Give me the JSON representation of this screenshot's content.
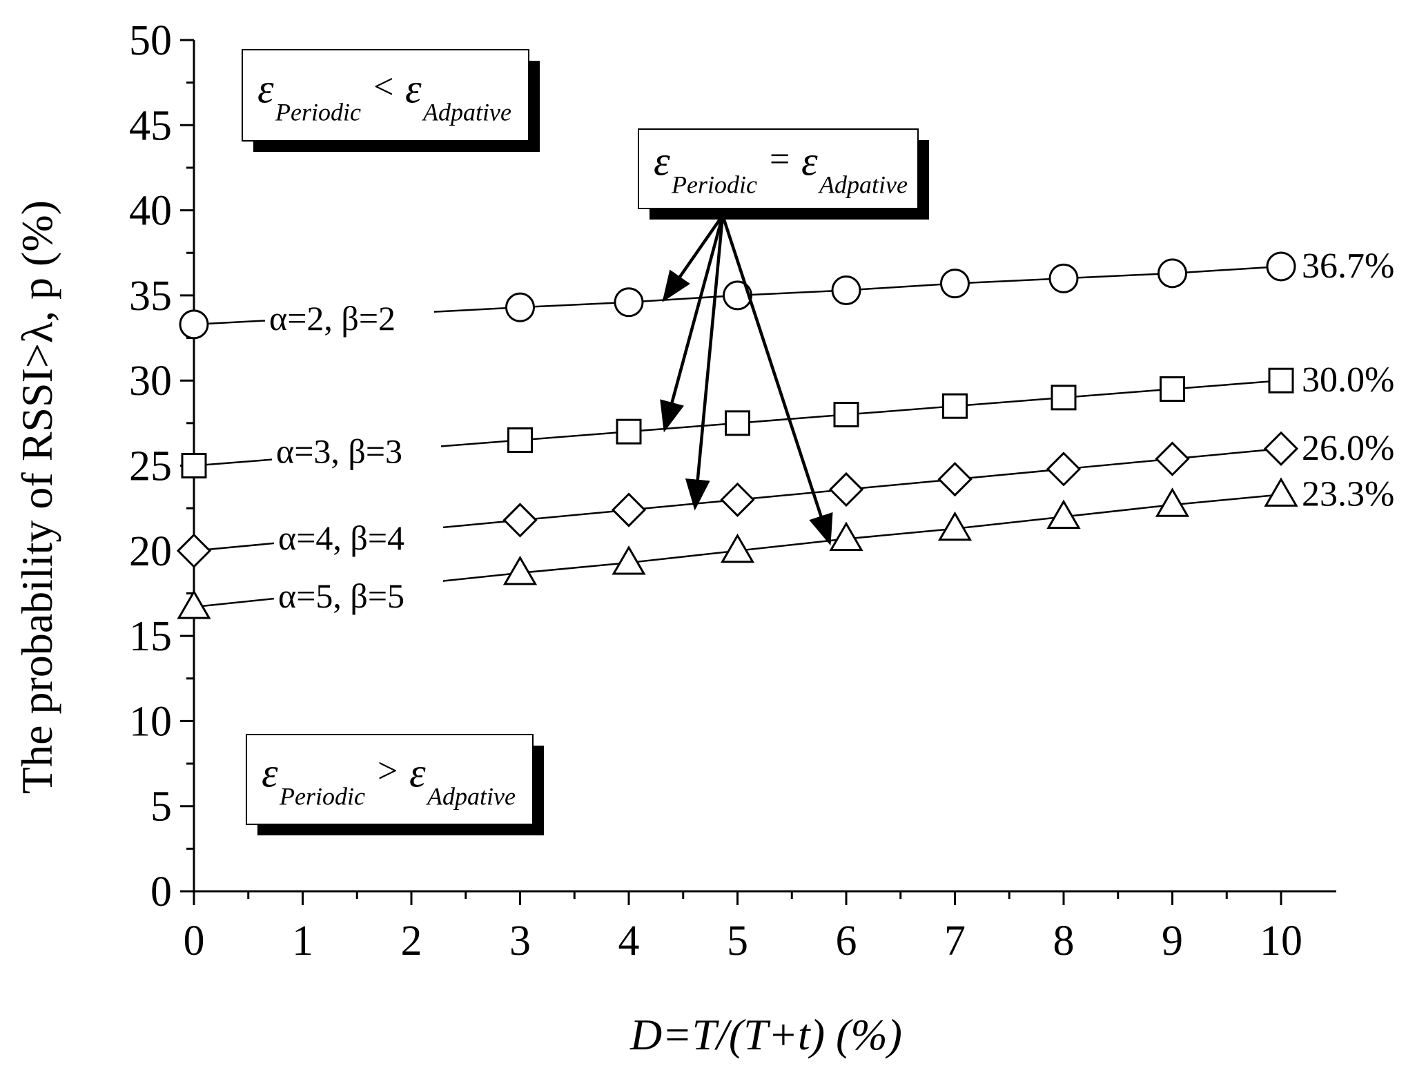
{
  "chart_data": {
    "type": "line",
    "xlabel": "D=T/(T+t) (%)",
    "ylabel": "The probability of RSSI>λ, p (%)",
    "xlim": [
      0,
      10.5
    ],
    "ylim": [
      0,
      50
    ],
    "xticks": [
      "0",
      "1",
      "2",
      "3",
      "4",
      "5",
      "6",
      "7",
      "8",
      "9",
      "10"
    ],
    "yticks": [
      "0",
      "5",
      "10",
      "15",
      "20",
      "25",
      "30",
      "35",
      "40",
      "45",
      "50"
    ],
    "grid": false,
    "x": [
      0,
      3,
      4,
      5,
      6,
      7,
      8,
      9,
      10
    ],
    "series": [
      {
        "name": "α=2, β=2",
        "marker": "circle",
        "values": [
          33.3,
          34.3,
          34.6,
          35.0,
          35.3,
          35.7,
          36.0,
          36.3,
          36.7
        ],
        "end_label": "36.7%"
      },
      {
        "name": "α=3, β=3",
        "marker": "square",
        "values": [
          25.0,
          26.5,
          27.0,
          27.5,
          28.0,
          28.5,
          29.0,
          29.5,
          30.0
        ],
        "end_label": "30.0%"
      },
      {
        "name": "α=4, β=4",
        "marker": "diamond",
        "values": [
          20.0,
          21.8,
          22.4,
          23.0,
          23.6,
          24.2,
          24.8,
          25.4,
          26.0
        ],
        "end_label": "26.0%"
      },
      {
        "name": "α=5, β=5",
        "marker": "triangle",
        "values": [
          16.7,
          18.7,
          19.3,
          20.0,
          20.7,
          21.3,
          22.0,
          22.7,
          23.3
        ],
        "end_label": "23.3%"
      }
    ],
    "annotations": {
      "symbol": "ε",
      "sub_left": "Periodic",
      "sub_right": "Adpative",
      "box_top": {
        "op": "<"
      },
      "box_mid": {
        "op": "="
      },
      "box_bottom": {
        "op": ">"
      }
    }
  }
}
